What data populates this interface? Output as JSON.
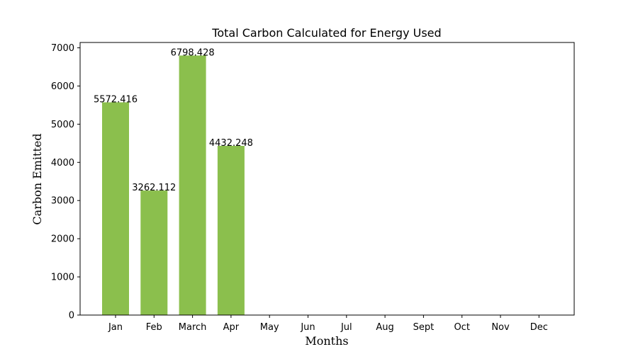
{
  "chart_data": {
    "type": "bar",
    "title": "Total Carbon Calculated for Energy Used",
    "xlabel": "Months",
    "ylabel": "Carbon Emitted",
    "categories": [
      "Jan",
      "Feb",
      "March",
      "Apr",
      "May",
      "Jun",
      "Jul",
      "Aug",
      "Sept",
      "Oct",
      "Nov",
      "Dec"
    ],
    "values": [
      5572.416,
      3262.112,
      6798.428,
      4432.248,
      0,
      0,
      0,
      0,
      0,
      0,
      0,
      0
    ],
    "data_labels": [
      "5572.416",
      "3262.112",
      "6798.428",
      "4432.248",
      null,
      null,
      null,
      null,
      null,
      null,
      null,
      null
    ],
    "ylim": [
      0,
      7140
    ],
    "yticks": [
      0,
      1000,
      2000,
      3000,
      4000,
      5000,
      6000,
      7000
    ],
    "bar_color": "#8bbf4d",
    "grid": false,
    "legend": "none"
  }
}
